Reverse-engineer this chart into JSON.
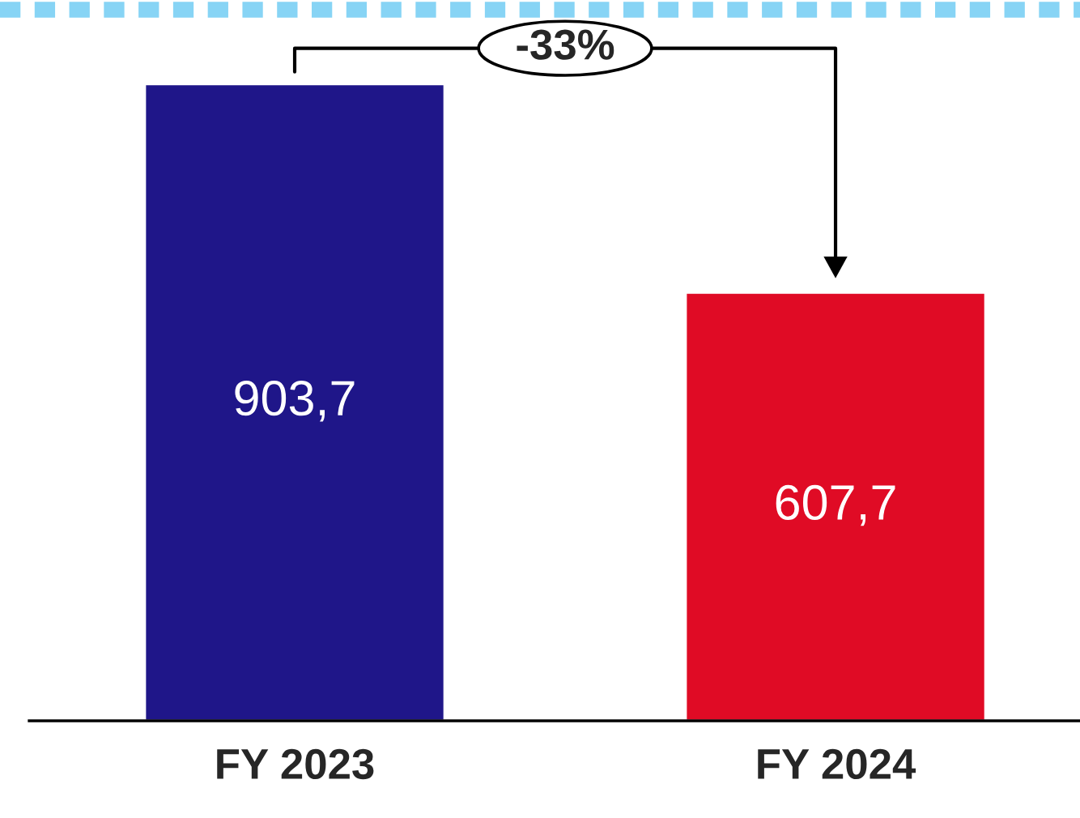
{
  "chart_data": {
    "type": "bar",
    "categories": [
      "FY 2023",
      "FY 2024"
    ],
    "values": [
      903.7,
      607.7
    ],
    "colors": [
      "#1f1689",
      "#e00b25"
    ],
    "value_labels": [
      "903,7",
      "607,7"
    ],
    "annotations": [
      "-33%"
    ],
    "grid": false,
    "legend": false
  }
}
